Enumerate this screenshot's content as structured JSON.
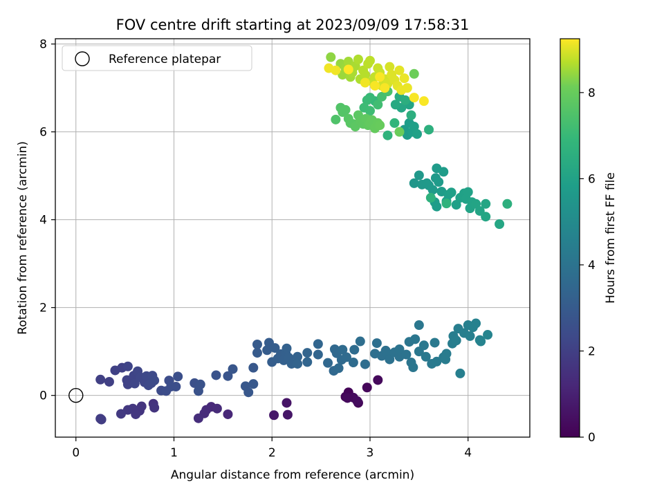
{
  "chart_data": {
    "type": "scatter",
    "title": "FOV centre drift starting at 2023/09/09 17:58:31",
    "xlabel": "Angular distance from reference (arcmin)",
    "ylabel": "Rotation from reference (arcmin)",
    "xlim": [
      -0.21,
      4.63
    ],
    "ylim": [
      -0.95,
      8.12
    ],
    "x_ticks": [
      "0",
      "1",
      "2",
      "3",
      "4"
    ],
    "y_ticks": [
      "0",
      "2",
      "4",
      "6",
      "8"
    ],
    "grid": true,
    "legend": {
      "position": "top-left",
      "entries": [
        "Reference platepar"
      ]
    },
    "reference_point": {
      "x": 0,
      "y": 0
    },
    "colorbar": {
      "label": "Hours from first FF file",
      "range": [
        0,
        9.25
      ],
      "ticks": [
        "0",
        "2",
        "4",
        "6",
        "8"
      ],
      "colormap": "viridis"
    },
    "points": [
      {
        "x": 2.78,
        "y": 0.07,
        "h": 0.1
      },
      {
        "x": 2.75,
        "y": -0.03,
        "h": 0.12
      },
      {
        "x": 2.88,
        "y": -0.17,
        "h": 0.15
      },
      {
        "x": 2.97,
        "y": 0.18,
        "h": 0.2
      },
      {
        "x": 3.08,
        "y": 0.35,
        "h": 0.25
      },
      {
        "x": 2.83,
        "y": -0.05,
        "h": 0.3
      },
      {
        "x": 2.87,
        "y": -0.13,
        "h": 0.35
      },
      {
        "x": 2.77,
        "y": -0.06,
        "h": 0.28
      },
      {
        "x": 2.15,
        "y": -0.17,
        "h": 0.6
      },
      {
        "x": 2.02,
        "y": -0.45,
        "h": 0.7
      },
      {
        "x": 2.16,
        "y": -0.44,
        "h": 0.65
      },
      {
        "x": 1.55,
        "y": -0.43,
        "h": 1.2
      },
      {
        "x": 1.38,
        "y": -0.26,
        "h": 1.25
      },
      {
        "x": 1.33,
        "y": -0.33,
        "h": 1.3
      },
      {
        "x": 1.31,
        "y": -0.41,
        "h": 1.35
      },
      {
        "x": 1.25,
        "y": -0.52,
        "h": 1.4
      },
      {
        "x": 1.44,
        "y": -0.3,
        "h": 1.3
      },
      {
        "x": 0.79,
        "y": -0.19,
        "h": 1.55
      },
      {
        "x": 0.8,
        "y": -0.28,
        "h": 1.6
      },
      {
        "x": 0.67,
        "y": -0.25,
        "h": 1.6
      },
      {
        "x": 0.65,
        "y": -0.35,
        "h": 1.65
      },
      {
        "x": 0.58,
        "y": -0.3,
        "h": 1.7
      },
      {
        "x": 0.61,
        "y": -0.43,
        "h": 1.7
      },
      {
        "x": 0.53,
        "y": -0.33,
        "h": 1.75
      },
      {
        "x": 0.46,
        "y": -0.42,
        "h": 1.8
      },
      {
        "x": 0.25,
        "y": -0.53,
        "h": 1.9
      },
      {
        "x": 0.26,
        "y": -0.55,
        "h": 1.9
      },
      {
        "x": 0.25,
        "y": 0.36,
        "h": 2.0
      },
      {
        "x": 0.34,
        "y": 0.31,
        "h": 2.0
      },
      {
        "x": 0.4,
        "y": 0.57,
        "h": 2.05
      },
      {
        "x": 0.47,
        "y": 0.63,
        "h": 2.05
      },
      {
        "x": 0.52,
        "y": 0.35,
        "h": 2.1
      },
      {
        "x": 0.53,
        "y": 0.25,
        "h": 2.1
      },
      {
        "x": 0.53,
        "y": 0.66,
        "h": 2.15
      },
      {
        "x": 0.59,
        "y": 0.45,
        "h": 2.15
      },
      {
        "x": 0.6,
        "y": 0.27,
        "h": 2.2
      },
      {
        "x": 0.63,
        "y": 0.55,
        "h": 2.2
      },
      {
        "x": 0.66,
        "y": 0.41,
        "h": 2.25
      },
      {
        "x": 0.7,
        "y": 0.3,
        "h": 2.25
      },
      {
        "x": 0.72,
        "y": 0.44,
        "h": 2.3
      },
      {
        "x": 0.74,
        "y": 0.23,
        "h": 2.3
      },
      {
        "x": 0.77,
        "y": 0.28,
        "h": 2.35
      },
      {
        "x": 0.78,
        "y": 0.45,
        "h": 2.35
      },
      {
        "x": 0.8,
        "y": 0.34,
        "h": 2.4
      },
      {
        "x": 0.87,
        "y": 0.11,
        "h": 2.4
      },
      {
        "x": 0.92,
        "y": 0.1,
        "h": 2.45
      },
      {
        "x": 0.95,
        "y": 0.34,
        "h": 2.45
      },
      {
        "x": 0.97,
        "y": 0.2,
        "h": 2.5
      },
      {
        "x": 1.02,
        "y": 0.2,
        "h": 2.5
      },
      {
        "x": 1.04,
        "y": 0.43,
        "h": 2.55
      },
      {
        "x": 1.21,
        "y": 0.28,
        "h": 2.6
      },
      {
        "x": 1.25,
        "y": 0.1,
        "h": 2.65
      },
      {
        "x": 1.27,
        "y": 0.25,
        "h": 2.65
      },
      {
        "x": 1.43,
        "y": 0.46,
        "h": 2.7
      },
      {
        "x": 1.55,
        "y": 0.44,
        "h": 2.75
      },
      {
        "x": 1.6,
        "y": 0.6,
        "h": 2.8
      },
      {
        "x": 1.73,
        "y": 0.21,
        "h": 2.85
      },
      {
        "x": 1.76,
        "y": 0.07,
        "h": 2.85
      },
      {
        "x": 1.81,
        "y": 0.26,
        "h": 2.9
      },
      {
        "x": 1.81,
        "y": 0.63,
        "h": 2.9
      },
      {
        "x": 1.85,
        "y": 0.97,
        "h": 3.0
      },
      {
        "x": 1.85,
        "y": 1.16,
        "h": 3.0
      },
      {
        "x": 1.95,
        "y": 1.03,
        "h": 3.05
      },
      {
        "x": 1.97,
        "y": 1.2,
        "h": 3.05
      },
      {
        "x": 2.0,
        "y": 0.76,
        "h": 3.1
      },
      {
        "x": 2.03,
        "y": 1.08,
        "h": 3.1
      },
      {
        "x": 2.06,
        "y": 0.84,
        "h": 3.15
      },
      {
        "x": 2.09,
        "y": 0.94,
        "h": 3.15
      },
      {
        "x": 2.12,
        "y": 0.8,
        "h": 3.2
      },
      {
        "x": 2.14,
        "y": 0.96,
        "h": 3.2
      },
      {
        "x": 2.15,
        "y": 1.07,
        "h": 3.25
      },
      {
        "x": 2.17,
        "y": 0.86,
        "h": 3.25
      },
      {
        "x": 2.2,
        "y": 0.72,
        "h": 3.3
      },
      {
        "x": 2.26,
        "y": 0.88,
        "h": 3.3
      },
      {
        "x": 2.26,
        "y": 0.72,
        "h": 3.35
      },
      {
        "x": 2.36,
        "y": 0.97,
        "h": 3.35
      },
      {
        "x": 2.36,
        "y": 0.76,
        "h": 3.4
      },
      {
        "x": 2.47,
        "y": 0.93,
        "h": 3.4
      },
      {
        "x": 2.47,
        "y": 1.17,
        "h": 3.45
      },
      {
        "x": 2.57,
        "y": 0.74,
        "h": 3.5
      },
      {
        "x": 2.63,
        "y": 0.56,
        "h": 3.5
      },
      {
        "x": 2.64,
        "y": 1.05,
        "h": 3.55
      },
      {
        "x": 2.66,
        "y": 0.96,
        "h": 3.55
      },
      {
        "x": 2.68,
        "y": 0.62,
        "h": 3.6
      },
      {
        "x": 2.71,
        "y": 0.81,
        "h": 3.6
      },
      {
        "x": 2.72,
        "y": 1.04,
        "h": 3.65
      },
      {
        "x": 2.76,
        "y": 0.87,
        "h": 3.65
      },
      {
        "x": 2.83,
        "y": 0.75,
        "h": 3.7
      },
      {
        "x": 2.84,
        "y": 1.04,
        "h": 3.7
      },
      {
        "x": 2.9,
        "y": 1.23,
        "h": 3.75
      },
      {
        "x": 2.95,
        "y": 0.71,
        "h": 3.75
      },
      {
        "x": 3.05,
        "y": 0.95,
        "h": 3.8
      },
      {
        "x": 3.07,
        "y": 1.19,
        "h": 3.8
      },
      {
        "x": 3.12,
        "y": 0.9,
        "h": 3.85
      },
      {
        "x": 3.16,
        "y": 1.02,
        "h": 3.85
      },
      {
        "x": 3.18,
        "y": 0.94,
        "h": 3.9
      },
      {
        "x": 3.2,
        "y": 0.82,
        "h": 3.9
      },
      {
        "x": 3.25,
        "y": 0.98,
        "h": 3.95
      },
      {
        "x": 3.3,
        "y": 0.88,
        "h": 3.95
      },
      {
        "x": 3.3,
        "y": 1.05,
        "h": 4.0
      },
      {
        "x": 3.37,
        "y": 0.93,
        "h": 4.0
      },
      {
        "x": 3.4,
        "y": 1.22,
        "h": 4.05
      },
      {
        "x": 3.42,
        "y": 0.75,
        "h": 4.05
      },
      {
        "x": 3.44,
        "y": 0.64,
        "h": 4.1
      },
      {
        "x": 3.46,
        "y": 1.28,
        "h": 4.1
      },
      {
        "x": 3.5,
        "y": 1.6,
        "h": 4.15
      },
      {
        "x": 3.5,
        "y": 1.0,
        "h": 4.15
      },
      {
        "x": 3.55,
        "y": 1.14,
        "h": 4.2
      },
      {
        "x": 3.57,
        "y": 0.88,
        "h": 4.2
      },
      {
        "x": 3.63,
        "y": 0.72,
        "h": 4.25
      },
      {
        "x": 3.66,
        "y": 1.2,
        "h": 4.25
      },
      {
        "x": 3.68,
        "y": 0.77,
        "h": 4.3
      },
      {
        "x": 3.75,
        "y": 0.87,
        "h": 4.3
      },
      {
        "x": 3.77,
        "y": 0.82,
        "h": 4.35
      },
      {
        "x": 3.78,
        "y": 0.95,
        "h": 4.35
      },
      {
        "x": 3.84,
        "y": 1.18,
        "h": 4.4
      },
      {
        "x": 3.85,
        "y": 1.35,
        "h": 4.4
      },
      {
        "x": 3.88,
        "y": 1.25,
        "h": 4.45
      },
      {
        "x": 3.9,
        "y": 1.52,
        "h": 4.45
      },
      {
        "x": 3.92,
        "y": 0.5,
        "h": 4.5
      },
      {
        "x": 3.96,
        "y": 1.42,
        "h": 4.5
      },
      {
        "x": 4.0,
        "y": 1.6,
        "h": 4.55
      },
      {
        "x": 4.02,
        "y": 1.35,
        "h": 4.55
      },
      {
        "x": 4.05,
        "y": 1.55,
        "h": 4.6
      },
      {
        "x": 4.08,
        "y": 1.64,
        "h": 4.6
      },
      {
        "x": 4.12,
        "y": 1.26,
        "h": 4.65
      },
      {
        "x": 4.13,
        "y": 1.23,
        "h": 4.65
      },
      {
        "x": 4.2,
        "y": 1.38,
        "h": 4.7
      },
      {
        "x": 3.45,
        "y": 4.83,
        "h": 5.5
      },
      {
        "x": 3.5,
        "y": 5.01,
        "h": 5.55
      },
      {
        "x": 3.53,
        "y": 4.8,
        "h": 5.55
      },
      {
        "x": 3.58,
        "y": 4.83,
        "h": 5.6
      },
      {
        "x": 3.6,
        "y": 4.78,
        "h": 5.6
      },
      {
        "x": 3.64,
        "y": 4.68,
        "h": 5.65
      },
      {
        "x": 3.67,
        "y": 4.95,
        "h": 5.65
      },
      {
        "x": 3.68,
        "y": 5.17,
        "h": 5.7
      },
      {
        "x": 3.7,
        "y": 4.86,
        "h": 5.7
      },
      {
        "x": 3.73,
        "y": 4.64,
        "h": 5.75
      },
      {
        "x": 3.75,
        "y": 5.09,
        "h": 5.75
      },
      {
        "x": 3.66,
        "y": 4.4,
        "h": 5.8
      },
      {
        "x": 3.68,
        "y": 4.3,
        "h": 5.8
      },
      {
        "x": 3.78,
        "y": 4.42,
        "h": 5.85
      },
      {
        "x": 3.8,
        "y": 4.57,
        "h": 5.85
      },
      {
        "x": 3.83,
        "y": 4.62,
        "h": 5.9
      },
      {
        "x": 3.88,
        "y": 4.34,
        "h": 5.9
      },
      {
        "x": 3.92,
        "y": 4.5,
        "h": 5.95
      },
      {
        "x": 3.96,
        "y": 4.6,
        "h": 5.95
      },
      {
        "x": 3.98,
        "y": 4.47,
        "h": 6.0
      },
      {
        "x": 4.0,
        "y": 4.63,
        "h": 6.0
      },
      {
        "x": 4.02,
        "y": 4.26,
        "h": 6.05
      },
      {
        "x": 4.04,
        "y": 4.4,
        "h": 6.05
      },
      {
        "x": 4.08,
        "y": 4.36,
        "h": 6.1
      },
      {
        "x": 4.12,
        "y": 4.2,
        "h": 6.1
      },
      {
        "x": 4.18,
        "y": 4.07,
        "h": 6.15
      },
      {
        "x": 4.18,
        "y": 4.36,
        "h": 6.15
      },
      {
        "x": 4.32,
        "y": 3.9,
        "h": 6.2
      },
      {
        "x": 4.4,
        "y": 4.36,
        "h": 6.6
      },
      {
        "x": 3.62,
        "y": 4.5,
        "h": 6.65
      },
      {
        "x": 3.78,
        "y": 4.37,
        "h": 6.7
      },
      {
        "x": 3.35,
        "y": 6.05,
        "h": 5.7
      },
      {
        "x": 3.38,
        "y": 5.93,
        "h": 5.75
      },
      {
        "x": 3.4,
        "y": 6.2,
        "h": 5.8
      },
      {
        "x": 3.43,
        "y": 6.0,
        "h": 5.85
      },
      {
        "x": 3.45,
        "y": 6.12,
        "h": 5.9
      },
      {
        "x": 3.48,
        "y": 5.95,
        "h": 5.95
      },
      {
        "x": 3.4,
        "y": 6.62,
        "h": 6.1
      },
      {
        "x": 3.32,
        "y": 6.55,
        "h": 6.2
      },
      {
        "x": 3.26,
        "y": 6.62,
        "h": 6.3
      },
      {
        "x": 3.3,
        "y": 6.8,
        "h": 6.4
      },
      {
        "x": 3.36,
        "y": 6.72,
        "h": 6.5
      },
      {
        "x": 3.42,
        "y": 6.38,
        "h": 6.55
      },
      {
        "x": 3.6,
        "y": 6.05,
        "h": 6.6
      },
      {
        "x": 3.18,
        "y": 5.92,
        "h": 6.7
      },
      {
        "x": 3.25,
        "y": 6.2,
        "h": 6.8
      },
      {
        "x": 3.05,
        "y": 6.7,
        "h": 6.9
      },
      {
        "x": 3.0,
        "y": 6.78,
        "h": 7.0
      },
      {
        "x": 2.97,
        "y": 6.72,
        "h": 7.05
      },
      {
        "x": 2.94,
        "y": 6.55,
        "h": 7.1
      },
      {
        "x": 3.0,
        "y": 6.48,
        "h": 7.15
      },
      {
        "x": 3.08,
        "y": 6.62,
        "h": 7.2
      },
      {
        "x": 3.12,
        "y": 6.8,
        "h": 7.3
      },
      {
        "x": 3.18,
        "y": 6.92,
        "h": 7.4
      },
      {
        "x": 2.65,
        "y": 6.28,
        "h": 7.5
      },
      {
        "x": 2.7,
        "y": 6.55,
        "h": 7.55
      },
      {
        "x": 2.72,
        "y": 6.45,
        "h": 7.6
      },
      {
        "x": 2.75,
        "y": 6.5,
        "h": 7.6
      },
      {
        "x": 2.78,
        "y": 6.3,
        "h": 7.65
      },
      {
        "x": 2.8,
        "y": 6.2,
        "h": 7.7
      },
      {
        "x": 2.83,
        "y": 6.18,
        "h": 7.7
      },
      {
        "x": 2.85,
        "y": 6.12,
        "h": 7.75
      },
      {
        "x": 2.88,
        "y": 6.38,
        "h": 7.75
      },
      {
        "x": 2.9,
        "y": 6.25,
        "h": 7.8
      },
      {
        "x": 2.93,
        "y": 6.18,
        "h": 7.8
      },
      {
        "x": 2.96,
        "y": 6.3,
        "h": 7.85
      },
      {
        "x": 2.98,
        "y": 6.15,
        "h": 7.85
      },
      {
        "x": 3.0,
        "y": 6.2,
        "h": 7.9
      },
      {
        "x": 3.02,
        "y": 6.27,
        "h": 7.9
      },
      {
        "x": 3.05,
        "y": 6.08,
        "h": 7.95
      },
      {
        "x": 3.08,
        "y": 6.2,
        "h": 7.95
      },
      {
        "x": 3.1,
        "y": 6.15,
        "h": 8.0
      },
      {
        "x": 3.3,
        "y": 6.0,
        "h": 8.05
      },
      {
        "x": 3.45,
        "y": 7.32,
        "h": 8.1
      },
      {
        "x": 2.6,
        "y": 7.7,
        "h": 8.4
      },
      {
        "x": 2.7,
        "y": 7.55,
        "h": 8.45
      },
      {
        "x": 2.72,
        "y": 7.3,
        "h": 8.5
      },
      {
        "x": 2.75,
        "y": 7.45,
        "h": 8.5
      },
      {
        "x": 2.78,
        "y": 7.6,
        "h": 8.55
      },
      {
        "x": 2.8,
        "y": 7.25,
        "h": 8.55
      },
      {
        "x": 2.82,
        "y": 7.35,
        "h": 8.6
      },
      {
        "x": 2.85,
        "y": 7.5,
        "h": 8.6
      },
      {
        "x": 2.88,
        "y": 7.65,
        "h": 8.65
      },
      {
        "x": 2.9,
        "y": 7.2,
        "h": 8.65
      },
      {
        "x": 2.93,
        "y": 7.4,
        "h": 8.7
      },
      {
        "x": 2.95,
        "y": 7.3,
        "h": 8.7
      },
      {
        "x": 2.98,
        "y": 7.55,
        "h": 8.75
      },
      {
        "x": 3.0,
        "y": 7.62,
        "h": 8.75
      },
      {
        "x": 3.02,
        "y": 7.15,
        "h": 8.8
      },
      {
        "x": 3.05,
        "y": 7.25,
        "h": 8.8
      },
      {
        "x": 3.08,
        "y": 7.45,
        "h": 8.85
      },
      {
        "x": 3.1,
        "y": 7.35,
        "h": 8.85
      },
      {
        "x": 3.12,
        "y": 7.05,
        "h": 8.9
      },
      {
        "x": 3.15,
        "y": 7.2,
        "h": 8.9
      },
      {
        "x": 3.18,
        "y": 7.1,
        "h": 8.95
      },
      {
        "x": 3.2,
        "y": 7.48,
        "h": 8.95
      },
      {
        "x": 3.22,
        "y": 7.3,
        "h": 9.0
      },
      {
        "x": 3.25,
        "y": 7.18,
        "h": 9.0
      },
      {
        "x": 3.28,
        "y": 7.05,
        "h": 9.05
      },
      {
        "x": 3.3,
        "y": 7.4,
        "h": 9.05
      },
      {
        "x": 3.32,
        "y": 6.95,
        "h": 9.1
      },
      {
        "x": 3.35,
        "y": 7.22,
        "h": 9.1
      },
      {
        "x": 3.38,
        "y": 7.0,
        "h": 9.1
      },
      {
        "x": 2.58,
        "y": 7.45,
        "h": 9.15
      },
      {
        "x": 2.65,
        "y": 7.4,
        "h": 9.15
      },
      {
        "x": 2.95,
        "y": 7.12,
        "h": 9.15
      },
      {
        "x": 3.05,
        "y": 7.05,
        "h": 9.2
      },
      {
        "x": 3.15,
        "y": 7.0,
        "h": 9.2
      },
      {
        "x": 3.45,
        "y": 6.78,
        "h": 9.2
      },
      {
        "x": 3.55,
        "y": 6.7,
        "h": 9.22
      },
      {
        "x": 3.1,
        "y": 7.25,
        "h": 9.22
      },
      {
        "x": 2.78,
        "y": 7.42,
        "h": 9.25
      }
    ]
  }
}
